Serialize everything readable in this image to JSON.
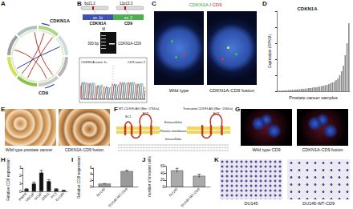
{
  "panels": {
    "A": {
      "label": "A",
      "genes": [
        "CDKN1A",
        "CD9"
      ]
    },
    "B": {
      "label": "B",
      "bands": [
        "6p21.2",
        "12p13.3"
      ],
      "genes": [
        "CDKN1A",
        "CD9"
      ],
      "exons": [
        "ex. 1c",
        "ex. 2"
      ],
      "gel_marker": "M",
      "gel_size": "300 bp",
      "gel_lane": "CDKN1A-CD9",
      "junction": [
        "CDKN1A exon 1c",
        "CD9 exon 2"
      ]
    },
    "C": {
      "label": "C",
      "stain": [
        "CDKN1A",
        "/",
        "CD9"
      ],
      "captions": [
        "Wild type",
        "CDKN1A-CD9 fusion"
      ]
    },
    "E": {
      "label": "E",
      "captions": [
        "Wild type prostate cancer",
        "CDKN1A-CD9 fusion"
      ]
    },
    "F": {
      "label": "F",
      "proteins": [
        "WT-CD9-FLAG (Mw ~27kDa)",
        "Truncated-CD9-FLAG (Mw ~20kDa)"
      ],
      "loops": [
        "EC1",
        "EC2"
      ],
      "compartments": [
        "Extracellular",
        "Plasma membrane",
        "Intracellular"
      ]
    },
    "G": {
      "label": "G",
      "captions": [
        "Wild type CD9",
        "CDKN1A-CD9 fusion"
      ]
    },
    "K": {
      "label": "K",
      "captions": [
        "DU145",
        "DU145-WT-CD9"
      ]
    }
  },
  "chart_data": [
    {
      "label": "D",
      "type": "bar",
      "title": "CDKN1A",
      "ylabel": "Expression (RPKM)",
      "xlabel": "Prostate cancer samples",
      "categories": [
        null,
        null,
        null,
        null,
        null,
        null,
        null,
        null,
        null,
        null,
        null,
        null,
        null,
        null,
        null,
        null,
        null,
        null,
        null,
        null,
        null,
        null,
        null,
        null,
        null,
        null,
        null,
        null,
        null,
        null,
        null,
        null,
        null,
        null,
        null,
        null,
        null,
        null,
        null,
        null
      ],
      "values": [
        0.5,
        0.8,
        1,
        1,
        1.2,
        1.5,
        1.5,
        1.8,
        2,
        2,
        2.2,
        2.5,
        2.5,
        3,
        3,
        3.2,
        3.5,
        4,
        4,
        4.5,
        5,
        5,
        5.5,
        6,
        6.5,
        7,
        7.5,
        8,
        9,
        10,
        11,
        12,
        14,
        16,
        20,
        25,
        32,
        45,
        60,
        85
      ],
      "color": "#888888",
      "ylim": [
        0,
        100
      ],
      "yticks": [
        0,
        20,
        40,
        60,
        80,
        100
      ],
      "tick_labels": false
    },
    {
      "label": "H",
      "type": "bar",
      "ylabel": "Relative CD9 expression",
      "categories": [
        "RWPE",
        "LNCaP",
        "VCaP",
        "22Rv1",
        "PC3",
        "DU145"
      ],
      "values": [
        0.3,
        1.0,
        2.4,
        1.3,
        0.3,
        0.15
      ],
      "errors": [
        0.05,
        0.2,
        0.3,
        0.2,
        0.05,
        0.02
      ],
      "color": "#111111",
      "ylim": [
        0,
        3
      ],
      "yticks": [
        0,
        1,
        2,
        3
      ]
    },
    {
      "label": "I",
      "type": "bar",
      "ylabel": "Relative CD9 expression",
      "categories": [
        "DU145",
        "DU145-WT-CD9"
      ],
      "values": [
        1,
        5
      ],
      "errors": [
        0.05,
        0.3
      ],
      "color": "#999999",
      "ylim": [
        0,
        6
      ],
      "yticks": [
        0,
        2,
        4,
        6
      ]
    },
    {
      "label": "J",
      "type": "bar",
      "ylabel": "number of invaded cells",
      "categories": [
        "DU145",
        "DU145-WT-CD9"
      ],
      "values": [
        48,
        32
      ],
      "errors": [
        6,
        5
      ],
      "color": "#aaaaaa",
      "ylim": [
        0,
        60
      ],
      "yticks": [
        0,
        20,
        40,
        60
      ]
    }
  ]
}
